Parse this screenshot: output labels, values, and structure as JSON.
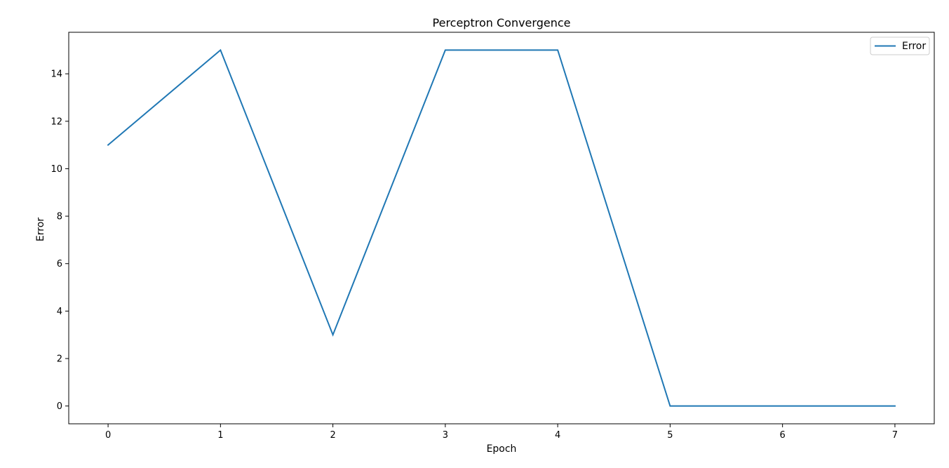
{
  "chart_data": {
    "type": "line",
    "title": "Perceptron Convergence",
    "xlabel": "Epoch",
    "ylabel": "Error",
    "x": [
      0,
      1,
      2,
      3,
      4,
      5,
      6,
      7
    ],
    "series": [
      {
        "name": "Error",
        "color": "#1f77b4",
        "values": [
          11,
          15,
          3,
          15,
          15,
          0,
          0,
          0
        ]
      }
    ],
    "xlim": [
      -0.35,
      7.35
    ],
    "ylim": [
      -0.75,
      15.75
    ],
    "xticks": [
      0,
      1,
      2,
      3,
      4,
      5,
      6,
      7
    ],
    "yticks": [
      0,
      2,
      4,
      6,
      8,
      10,
      12,
      14
    ],
    "grid": false,
    "legend_position": "top-right"
  }
}
